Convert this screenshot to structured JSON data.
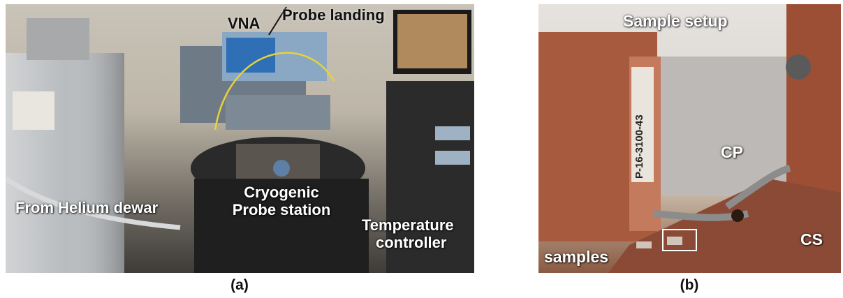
{
  "panel_a": {
    "caption": "(a)",
    "labels": {
      "vna": "VNA",
      "probe_landing": "Probe landing",
      "helium_dewar": "From Helium dewar",
      "probe_station_line1": "Cryogenic",
      "probe_station_line2": "Probe station",
      "temp_line1": "Temperature",
      "temp_line2": "controller"
    }
  },
  "panel_b": {
    "caption": "(b)",
    "labels": {
      "sample_setup": "Sample setup",
      "cp": "CP",
      "cs": "CS",
      "samples": "samples"
    },
    "probe_marking": "P-16-3100-43"
  }
}
